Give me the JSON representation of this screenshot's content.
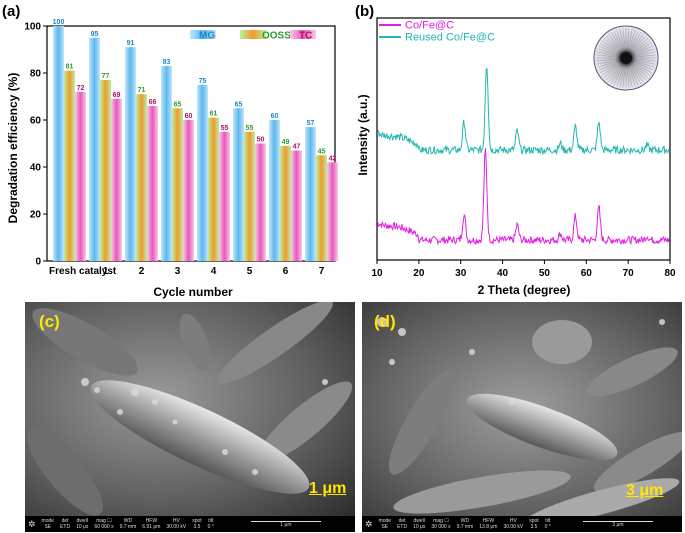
{
  "panel_labels": {
    "a": "(a)",
    "b": "(b)",
    "c": "(c)",
    "d": "(d)"
  },
  "chart_data": [
    {
      "type": "bar",
      "panel": "(a)",
      "xlabel": "Cycle number",
      "ylabel": "Degradation efficiency (%)",
      "ylim": [
        0,
        100
      ],
      "yticks": [
        0,
        20,
        40,
        60,
        80,
        100
      ],
      "categories": [
        "Fresh catalyst",
        "1",
        "2",
        "3",
        "4",
        "5",
        "6",
        "7"
      ],
      "series": [
        {
          "name": "MG",
          "color": "#6fc3ef",
          "label_color": "#1e88c8",
          "values": [
            100,
            95,
            91,
            83,
            75,
            65,
            60,
            57
          ]
        },
        {
          "name": "OOSS",
          "color": "#9ee08a",
          "label_color": "#2e9a2e",
          "values": [
            81,
            77,
            71,
            65,
            61,
            55,
            49,
            45
          ]
        },
        {
          "name": "TC",
          "color": "#f07cc8",
          "label_color": "#b0106a",
          "values": [
            72,
            69,
            66,
            60,
            55,
            50,
            47,
            42
          ]
        }
      ],
      "legend_position": "top-right"
    },
    {
      "type": "line",
      "panel": "(b)",
      "xlabel": "2 Theta (degree)",
      "ylabel": "Intensity (a.u.)",
      "xlim": [
        10,
        80
      ],
      "xticks": [
        10,
        20,
        30,
        40,
        50,
        60,
        70,
        80
      ],
      "series": [
        {
          "name": "Co/Fe@C",
          "color": "#e020e0",
          "baseline": 0.0,
          "peaks": [
            [
              30.8,
              0.12
            ],
            [
              35.9,
              0.42
            ],
            [
              43.5,
              0.07
            ],
            [
              53.8,
              0.03
            ],
            [
              57.4,
              0.11
            ],
            [
              63.0,
              0.15
            ],
            [
              74.5,
              0.02
            ]
          ]
        },
        {
          "name": "Reused Co/Fe@C",
          "color": "#20b8b0",
          "baseline": 0.5,
          "peaks": [
            [
              30.8,
              0.13
            ],
            [
              36.2,
              0.4
            ],
            [
              43.5,
              0.09
            ],
            [
              53.8,
              0.03
            ],
            [
              57.4,
              0.11
            ],
            [
              63.0,
              0.13
            ],
            [
              74.5,
              0.02
            ]
          ]
        }
      ],
      "legend_position": "top-left"
    }
  ],
  "sem_images": [
    {
      "panel": "(c)",
      "scale_bar": "1 μm",
      "info": [
        [
          "mode",
          "SE"
        ],
        [
          "det",
          "ETD"
        ],
        [
          "dwell",
          "10 μs"
        ],
        [
          "mag ☐",
          "60 000 x"
        ],
        [
          "WD",
          "9.7 mm"
        ],
        [
          "HFW",
          "6.91 μm"
        ],
        [
          "HV",
          "30.00 kV"
        ],
        [
          "spot",
          "3.5"
        ],
        [
          "tilt",
          "0 °"
        ]
      ],
      "bar_text": "1 μm"
    },
    {
      "panel": "(d)",
      "scale_bar": "3 μm",
      "info": [
        [
          "mode",
          "SE"
        ],
        [
          "det",
          "ETD"
        ],
        [
          "dwell",
          "10 μs"
        ],
        [
          "mag ☐",
          "30 000 x"
        ],
        [
          "WD",
          "9.7 mm"
        ],
        [
          "HFW",
          "13.8 μm"
        ],
        [
          "HV",
          "30.00 kV"
        ],
        [
          "spot",
          "3.5"
        ],
        [
          "tilt",
          "0 °"
        ]
      ],
      "bar_text": "3 μm"
    }
  ]
}
